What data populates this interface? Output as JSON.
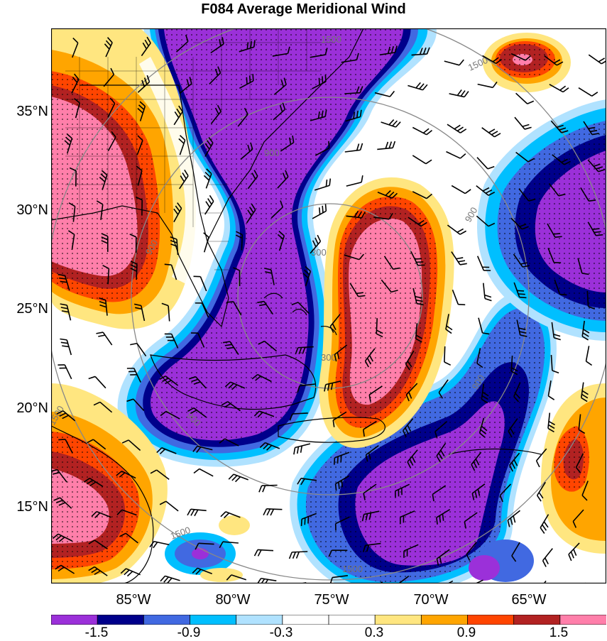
{
  "title": "F084 Average Meridional Wind",
  "lat_labels": [
    "35°N",
    "30°N",
    "25°N",
    "20°N",
    "15°N"
  ],
  "lon_labels": [
    "85°W",
    "80°W",
    "75°W",
    "70°W",
    "65°W"
  ],
  "contour_labels": [
    "300",
    "300",
    "900",
    "900",
    "900",
    "900",
    "900",
    "1500",
    "1500",
    "1500",
    "1500",
    "1500"
  ],
  "colorbar": {
    "colors": [
      "#9b30d9",
      "#00008b",
      "#4169e1",
      "#00bfff",
      "#b0e2ff",
      "#ffffff",
      "#ffffff",
      "#ffe680",
      "#ffa500",
      "#ff4500",
      "#b22222",
      "#ff7faa"
    ],
    "labels": [
      "-1.5",
      "-0.9",
      "-0.3",
      "0.3",
      "0.9",
      "1.5"
    ]
  },
  "colors": {
    "strong_negative": "#9b30d9",
    "negative": "#00008b",
    "weak_negative": "#4169e1",
    "light_negative": "#00bfff",
    "faint_negative": "#b0e2ff",
    "faint_positive": "#ffe680",
    "light_positive": "#ffa500",
    "positive": "#ff4500",
    "strong_positive": "#b22222",
    "extreme_positive": "#ff7faa"
  }
}
